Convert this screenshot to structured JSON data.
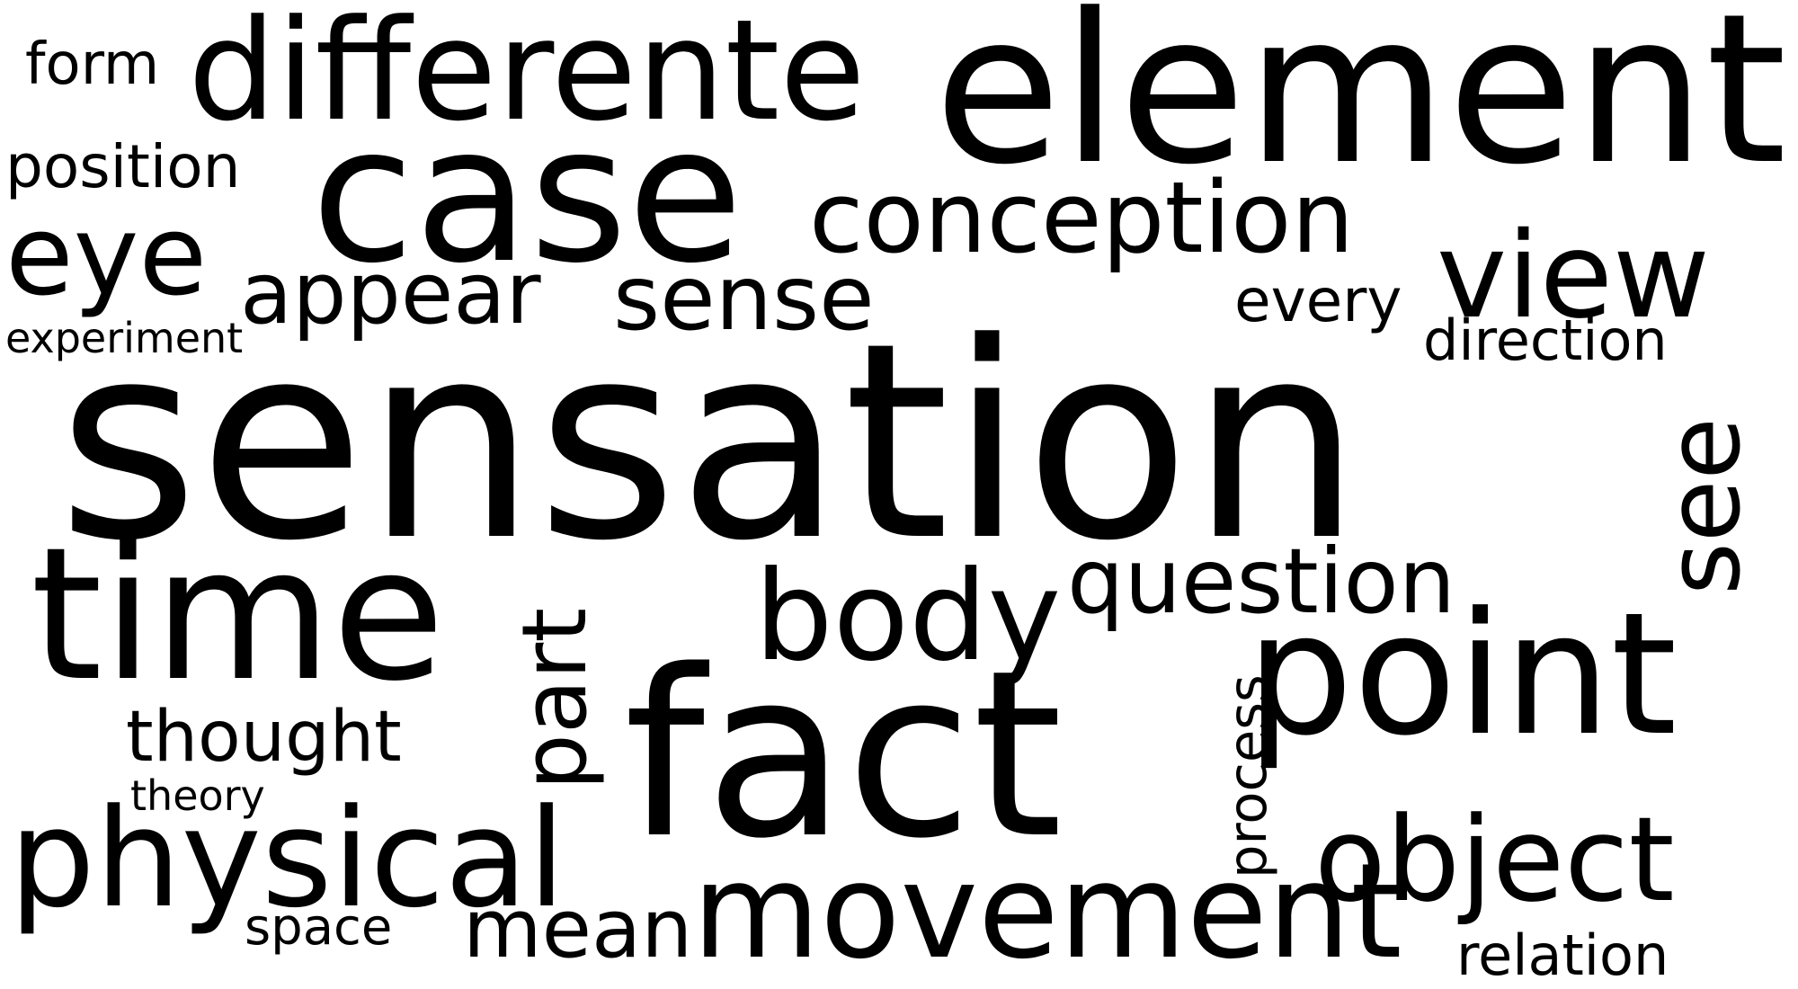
{
  "background_color": "#ffffff",
  "text_color": "#000000",
  "words": {
    "sensation": "sensation",
    "fact": "fact",
    "element": "element",
    "case": "case",
    "time": "time",
    "point": "point",
    "differente": "differente",
    "physical": "physical",
    "movement": "movement",
    "body": "body",
    "view": "view",
    "object": "object",
    "eye": "eye",
    "conception": "conception",
    "see": "see",
    "part": "part",
    "question": "question",
    "sense": "sense",
    "appear": "appear",
    "mean": "mean",
    "thought": "thought",
    "position": "position",
    "every": "every",
    "process": "process",
    "direction": "direction",
    "relation": "relation",
    "form": "form",
    "space": "space",
    "experiment": "experiment",
    "theory": "theory"
  },
  "rotated_words": [
    "see",
    "part",
    "process"
  ]
}
